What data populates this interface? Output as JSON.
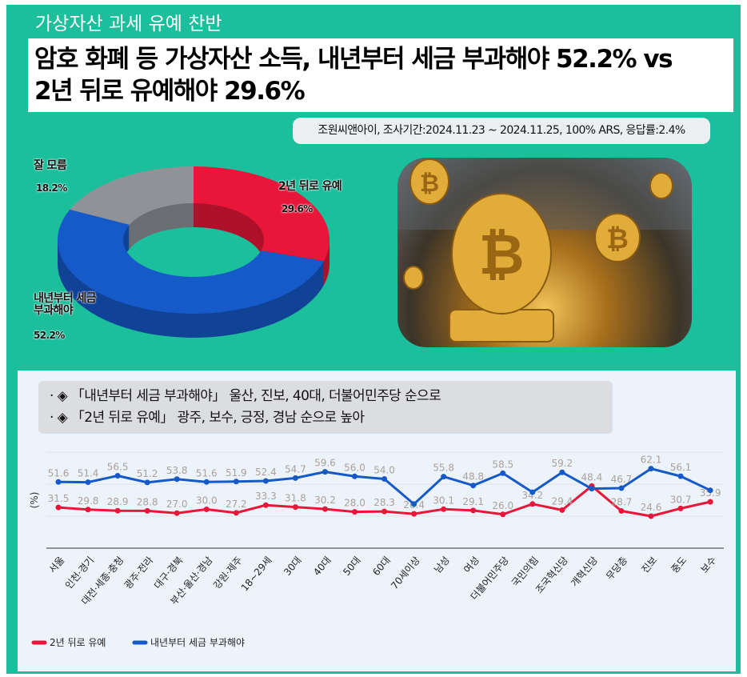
{
  "top_title": "가상자산 과세 유예 찬반",
  "headline": [
    "암호 화폐 등 가상자산 소득, 내년부터 세금 부과해야 52.2% vs",
    "2년 뒤로 유예해야 29.6%"
  ],
  "source": "조원씨앤아이, 조사기간:2024.11.23 ~ 2024.11.25, 100% ARS, 응답률:2.4%",
  "photo": {
    "icon": "bitcoin-coins-illustration"
  },
  "colors": {
    "background": "#1bbf9c",
    "red": "#e8173a",
    "blue": "#1659c8",
    "gray": "#8f9398"
  },
  "notes": [
    "· ◈ 「내년부터 세금 부과해야」 울산, 진보, 40대, 더불어민주당 순으로",
    "· ◈ 「2년 뒤로 유예」 광주, 보수, 긍정, 경남 순으로 높아"
  ],
  "chart_data": [
    {
      "type": "pie",
      "style": "3d-donut",
      "slices": [
        {
          "label": "2년 뒤로 유예",
          "value": 29.6,
          "value_label": "29.6%",
          "color": "#e8173a"
        },
        {
          "label": "내년부터 세금\n부과해야",
          "value": 52.2,
          "value_label": "52.2%",
          "color": "#1659c8"
        },
        {
          "label": "잘 모름",
          "value": 18.2,
          "value_label": "18.2%",
          "color": "#8f9398"
        }
      ]
    },
    {
      "type": "line",
      "ylabel": "(%)",
      "grid": true,
      "legend": "bottom-left",
      "categories": [
        "서울",
        "인천·경기",
        "대전·세종·충청",
        "광주·전라",
        "대구·경북",
        "부산·울산·경남",
        "강원·제주",
        "18~29세",
        "30대",
        "40대",
        "50대",
        "60대",
        "70세이상",
        "남성",
        "여성",
        "더불어민주당",
        "국민의힘",
        "조국혁신당",
        "개혁신당",
        "무당층",
        "진보",
        "중도",
        "보수"
      ],
      "series": [
        {
          "name": "2년 뒤로 유예",
          "color": "#e8173a",
          "values": [
            31.5,
            29.8,
            28.9,
            28.8,
            27.0,
            30.0,
            27.2,
            33.3,
            31.8,
            30.2,
            28.0,
            28.3,
            26.4,
            30.1,
            29.1,
            26.0,
            34.2,
            29.4,
            48.4,
            28.7,
            24.6,
            30.7,
            35.9
          ],
          "labels": [
            "31.5",
            "29.8",
            "28.9",
            "28.8",
            "27.0",
            "30.0",
            "27.2",
            "33.3",
            "31.8",
            "30.2",
            "28.0",
            "28.3",
            "26.4",
            "30.1",
            "29.1",
            "26.0",
            "34.2",
            "29.4",
            "48.4",
            "28.7",
            "24.6",
            "30.7",
            "35.9"
          ]
        },
        {
          "name": "내년부터 세금 부과해야",
          "color": "#1659c8",
          "values": [
            51.6,
            51.4,
            56.5,
            51.2,
            53.8,
            51.6,
            51.9,
            52.4,
            54.7,
            59.6,
            56.0,
            54.0,
            34.1,
            55.8,
            48.8,
            58.5,
            43.5,
            59.2,
            46.3,
            46.7,
            62.1,
            56.1,
            45.0
          ],
          "labels": [
            "51.6",
            "51.4",
            "56.5",
            "51.2",
            "53.8",
            "51.6",
            "51.9",
            "52.4",
            "54.7",
            "59.6",
            "56.0",
            "54.0",
            null,
            "55.8",
            "48.8",
            "58.5",
            null,
            "59.2",
            null,
            "46.7",
            "62.1",
            "56.1",
            null
          ]
        }
      ]
    }
  ]
}
